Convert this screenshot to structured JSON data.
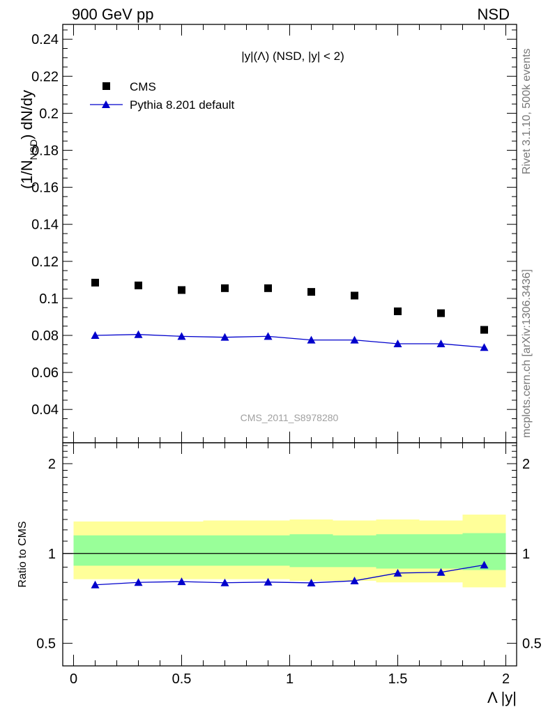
{
  "header": {
    "left": "900 GeV pp",
    "right": "NSD"
  },
  "side_text": {
    "top": "Rivet 3.1.10,  500k events",
    "bottom": "mcplots.cern.ch [arXiv:1306.3436]"
  },
  "watermark": "CMS_2011_S8978280",
  "chart_data": [
    {
      "type": "scatter",
      "title": "|y|(Λ) (NSD, |y| < 2)",
      "ylabel": "(1/N_NSD) dN/dy",
      "ylim": [
        0.022,
        0.248
      ],
      "xlim": [
        -0.05,
        2.05
      ],
      "yticks": [
        "0.04",
        "0.06",
        "0.08",
        "0.1",
        "0.12",
        "0.14",
        "0.16",
        "0.18",
        "0.2",
        "0.22",
        "0.24"
      ],
      "legend": [
        "CMS",
        "Pythia 8.201 default"
      ],
      "legend_placement": "top-left",
      "x": [
        0.1,
        0.3,
        0.5,
        0.7,
        0.9,
        1.1,
        1.3,
        1.5,
        1.7,
        1.9
      ],
      "series": [
        {
          "name": "CMS",
          "marker": "square",
          "color": "#000000",
          "values": [
            0.1085,
            0.107,
            0.1045,
            0.1055,
            0.1055,
            0.1035,
            0.1015,
            0.093,
            0.092,
            0.083
          ]
        },
        {
          "name": "Pythia 8.201 default",
          "marker": "triangle",
          "color": "#0000cc",
          "values": [
            0.08,
            0.0805,
            0.0795,
            0.079,
            0.0795,
            0.0775,
            0.0775,
            0.0755,
            0.0755,
            0.0735
          ]
        }
      ]
    },
    {
      "type": "line",
      "ylabel": "Ratio to CMS",
      "xlabel": "Λ |y|",
      "log_y": true,
      "ylim": [
        0.42,
        2.35
      ],
      "xlim": [
        -0.05,
        2.05
      ],
      "yticks": [
        "0.5",
        "1",
        "2"
      ],
      "xticks": [
        "0",
        "0.5",
        "1",
        "1.5",
        "2"
      ],
      "x": [
        0.1,
        0.3,
        0.5,
        0.7,
        0.9,
        1.1,
        1.3,
        1.5,
        1.7,
        1.9
      ],
      "bin_edges": [
        0.0,
        0.2,
        0.4,
        0.6,
        0.8,
        1.0,
        1.2,
        1.4,
        1.6,
        1.8,
        2.0
      ],
      "band_green": [
        [
          0.91,
          1.15
        ],
        [
          0.91,
          1.15
        ],
        [
          0.91,
          1.15
        ],
        [
          0.91,
          1.15
        ],
        [
          0.91,
          1.15
        ],
        [
          0.9,
          1.16
        ],
        [
          0.9,
          1.15
        ],
        [
          0.89,
          1.16
        ],
        [
          0.89,
          1.16
        ],
        [
          0.88,
          1.17
        ]
      ],
      "band_yellow": [
        [
          0.82,
          1.28
        ],
        [
          0.82,
          1.28
        ],
        [
          0.82,
          1.28
        ],
        [
          0.82,
          1.29
        ],
        [
          0.82,
          1.29
        ],
        [
          0.81,
          1.3
        ],
        [
          0.81,
          1.29
        ],
        [
          0.8,
          1.3
        ],
        [
          0.8,
          1.29
        ],
        [
          0.77,
          1.35
        ]
      ],
      "series": [
        {
          "name": "Pythia 8.201 default",
          "color": "#0000cc",
          "values": [
            0.785,
            0.8,
            0.805,
            0.798,
            0.802,
            0.797,
            0.81,
            0.86,
            0.865,
            0.915
          ]
        }
      ]
    }
  ]
}
